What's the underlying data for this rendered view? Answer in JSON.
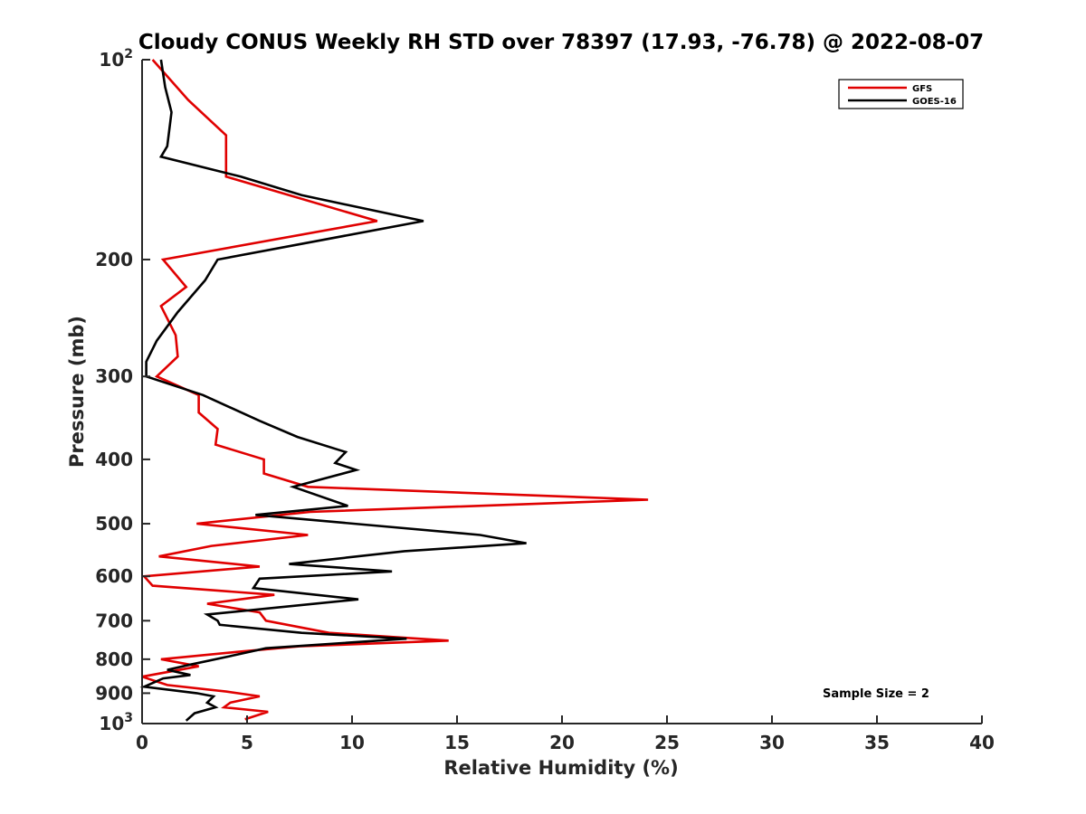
{
  "chart_data": {
    "type": "line",
    "title": "Cloudy CONUS Weekly RH STD over 78397 (17.93, -76.78) @ 2022-08-07",
    "xlabel": "Relative Humidity (%)",
    "ylabel": "Pressure (mb)",
    "xlim": [
      0,
      40
    ],
    "ylim": [
      100,
      1000
    ],
    "yscale": "log",
    "y_reversed": true,
    "grid": false,
    "legend_position": "top-right",
    "x_ticks": [
      "0",
      "5",
      "10",
      "15",
      "20",
      "25",
      "30",
      "35",
      "40"
    ],
    "y_ticks": [
      {
        "value": 100,
        "base": "10",
        "exp": "2"
      },
      {
        "value": 200,
        "label": "200"
      },
      {
        "value": 300,
        "label": "300"
      },
      {
        "value": 400,
        "label": "400"
      },
      {
        "value": 500,
        "label": "500"
      },
      {
        "value": 600,
        "label": "600"
      },
      {
        "value": 700,
        "label": "700"
      },
      {
        "value": 800,
        "label": "800"
      },
      {
        "value": 900,
        "label": "900"
      },
      {
        "value": 1000,
        "base": "10",
        "exp": "3"
      }
    ],
    "annotation": "Sample Size = 2",
    "series": [
      {
        "name": "GFS",
        "color": "#e00000",
        "points": [
          [
            0.5,
            100
          ],
          [
            2.2,
            115
          ],
          [
            4.0,
            130
          ],
          [
            4.0,
            150
          ],
          [
            11.2,
            175
          ],
          [
            1.0,
            200
          ],
          [
            2.1,
            220
          ],
          [
            0.9,
            235
          ],
          [
            1.6,
            260
          ],
          [
            1.7,
            280
          ],
          [
            0.7,
            300
          ],
          [
            2.7,
            320
          ],
          [
            2.7,
            340
          ],
          [
            3.6,
            360
          ],
          [
            3.5,
            380
          ],
          [
            5.8,
            400
          ],
          [
            5.8,
            420
          ],
          [
            7.9,
            440
          ],
          [
            24.1,
            460
          ],
          [
            8.0,
            480
          ],
          [
            2.6,
            500
          ],
          [
            7.9,
            520
          ],
          [
            3.3,
            540
          ],
          [
            0.8,
            560
          ],
          [
            5.6,
            580
          ],
          [
            0.1,
            600
          ],
          [
            0.5,
            620
          ],
          [
            6.3,
            640
          ],
          [
            3.1,
            660
          ],
          [
            5.6,
            680
          ],
          [
            5.9,
            700
          ],
          [
            8.9,
            730
          ],
          [
            14.6,
            750
          ],
          [
            7.5,
            765
          ],
          [
            4.5,
            780
          ],
          [
            0.9,
            800
          ],
          [
            2.7,
            820
          ],
          [
            0.0,
            850
          ],
          [
            1.2,
            875
          ],
          [
            4.0,
            895
          ],
          [
            5.6,
            910
          ],
          [
            4.2,
            930
          ],
          [
            3.9,
            945
          ],
          [
            6.0,
            960
          ],
          [
            4.9,
            985
          ]
        ]
      },
      {
        "name": "GOES-16",
        "color": "#000000",
        "points": [
          [
            0.9,
            100
          ],
          [
            1.1,
            110
          ],
          [
            1.4,
            120
          ],
          [
            1.2,
            135
          ],
          [
            0.9,
            140
          ],
          [
            4.7,
            150
          ],
          [
            7.6,
            160
          ],
          [
            13.4,
            175
          ],
          [
            3.6,
            200
          ],
          [
            3.0,
            215
          ],
          [
            1.7,
            240
          ],
          [
            0.7,
            265
          ],
          [
            0.2,
            285
          ],
          [
            0.2,
            300
          ],
          [
            2.9,
            320
          ],
          [
            5.6,
            350
          ],
          [
            7.4,
            370
          ],
          [
            9.7,
            390
          ],
          [
            9.2,
            405
          ],
          [
            10.2,
            415
          ],
          [
            7.2,
            440
          ],
          [
            9.8,
            470
          ],
          [
            5.4,
            485
          ],
          [
            16.1,
            520
          ],
          [
            18.3,
            535
          ],
          [
            12.5,
            550
          ],
          [
            7.0,
            575
          ],
          [
            11.9,
            590
          ],
          [
            5.6,
            605
          ],
          [
            5.3,
            625
          ],
          [
            10.3,
            650
          ],
          [
            3.1,
            685
          ],
          [
            3.6,
            700
          ],
          [
            3.7,
            710
          ],
          [
            7.6,
            730
          ],
          [
            12.6,
            745
          ],
          [
            5.9,
            770
          ],
          [
            4.3,
            790
          ],
          [
            2.3,
            815
          ],
          [
            1.2,
            830
          ],
          [
            2.3,
            845
          ],
          [
            1.0,
            855
          ],
          [
            0.1,
            880
          ],
          [
            2.6,
            900
          ],
          [
            3.4,
            910
          ],
          [
            3.1,
            930
          ],
          [
            3.5,
            945
          ],
          [
            2.5,
            965
          ],
          [
            2.1,
            990
          ]
        ]
      }
    ]
  }
}
